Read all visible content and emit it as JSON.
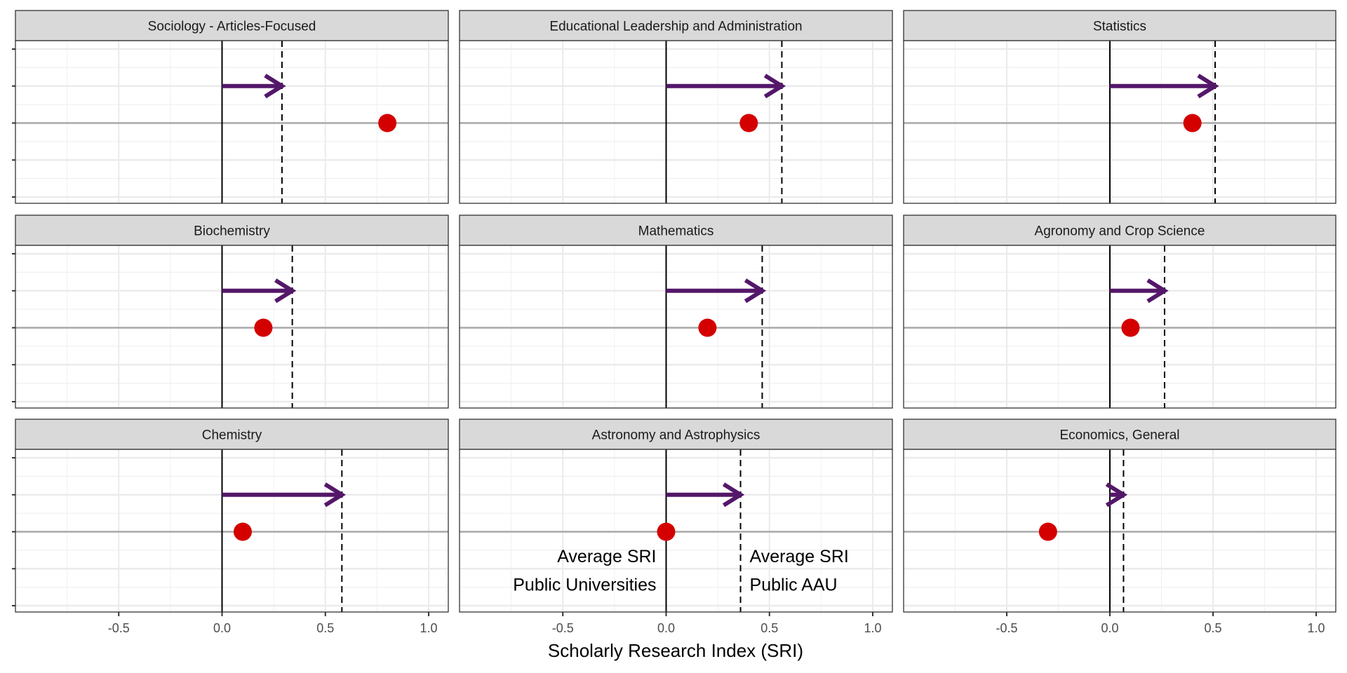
{
  "chart_data": {
    "type": "faceted-arrow-dot",
    "xlabel": "Scholarly Research Index (SRI)",
    "xlim": [
      -1.0,
      1.095
    ],
    "ylim": [
      -2.23,
      2.23
    ],
    "x_ticks": [
      -0.5,
      0.0,
      0.5,
      1.0
    ],
    "x_tick_labels": [
      "-0.5",
      "0.0",
      "0.5",
      "1.0"
    ],
    "y_ticks": [
      -2,
      -1,
      0,
      1,
      2
    ],
    "grid": true,
    "colors": {
      "arrow": "#541769",
      "point": "#d40000",
      "strip": "#d9d9d9"
    },
    "panels": [
      {
        "title": "Sociology - Articles-Focused",
        "aau_avg": 0.29,
        "sri": 0.8
      },
      {
        "title": "Educational Leadership and Administration",
        "aau_avg": 0.56,
        "sri": 0.4
      },
      {
        "title": "Statistics",
        "aau_avg": 0.51,
        "sri": 0.4
      },
      {
        "title": "Biochemistry",
        "aau_avg": 0.34,
        "sri": 0.2
      },
      {
        "title": "Mathematics",
        "aau_avg": 0.465,
        "sri": 0.2
      },
      {
        "title": "Agronomy and Crop Science",
        "aau_avg": 0.265,
        "sri": 0.1
      },
      {
        "title": "Chemistry",
        "aau_avg": 0.58,
        "sri": 0.1
      },
      {
        "title": "Astronomy and Astrophysics",
        "aau_avg": 0.36,
        "sri": 0.0
      },
      {
        "title": "Economics, General",
        "aau_avg": 0.066,
        "sri": -0.3
      }
    ],
    "annotations": {
      "panel": 7,
      "left": [
        "Average SRI",
        "Public Universities"
      ],
      "right": [
        "Average SRI",
        "Public AAU"
      ]
    }
  }
}
